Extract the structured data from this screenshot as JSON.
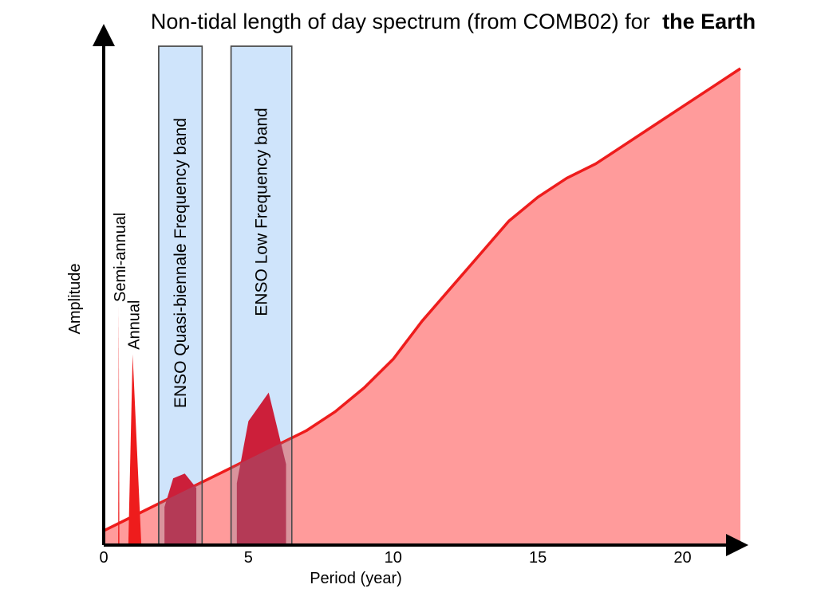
{
  "chart_data": {
    "type": "area",
    "title": "Non-tidal length of day spectrum (from COMB02) for",
    "title_emphasis": "the Earth",
    "xlabel": "Period (year)",
    "ylabel": "Amplitude",
    "xlim": [
      0,
      22
    ],
    "ylim": [
      0,
      1
    ],
    "x_ticks": [
      0,
      5,
      10,
      15,
      20
    ],
    "grid": false,
    "background": {
      "x": [
        0,
        1,
        2,
        3,
        4,
        5,
        6,
        7,
        8,
        9,
        10,
        11,
        12,
        13,
        14,
        15,
        16,
        17,
        18,
        19,
        20,
        21,
        22
      ],
      "y": [
        0.03,
        0.06,
        0.09,
        0.12,
        0.15,
        0.18,
        0.21,
        0.24,
        0.28,
        0.33,
        0.39,
        0.47,
        0.54,
        0.61,
        0.68,
        0.73,
        0.77,
        0.8,
        0.84,
        0.88,
        0.92,
        0.96,
        1.0
      ]
    },
    "bands": [
      {
        "label": "ENSO Quasi-biennale Frequency band",
        "x_start": 1.9,
        "x_end": 3.4
      },
      {
        "label": "ENSO Low Frequency band",
        "x_start": 4.4,
        "x_end": 6.5
      }
    ],
    "peaks": [
      {
        "label": "Semi-annual",
        "x": [
          0.5,
          0.52,
          0.54
        ],
        "y": [
          0.0,
          0.5,
          0.0
        ]
      },
      {
        "label": "Annual",
        "x": [
          0.85,
          1.0,
          1.3
        ],
        "y": [
          0.0,
          0.4,
          0.0
        ]
      },
      {
        "label": "",
        "x": [
          2.1,
          2.4,
          2.8,
          3.2
        ],
        "y": [
          0.08,
          0.14,
          0.15,
          0.12
        ]
      },
      {
        "label": "",
        "x": [
          4.6,
          5.0,
          5.7,
          6.3
        ],
        "y": [
          0.13,
          0.26,
          0.32,
          0.17
        ]
      }
    ],
    "colors": {
      "area_fill": "#ff9b9b",
      "line": "#ee1c1c",
      "peak_fill": "#cc1f3a",
      "band_fill": "#cfe4fb",
      "band_stroke": "#4a4a4a",
      "axis": "#000000"
    }
  }
}
